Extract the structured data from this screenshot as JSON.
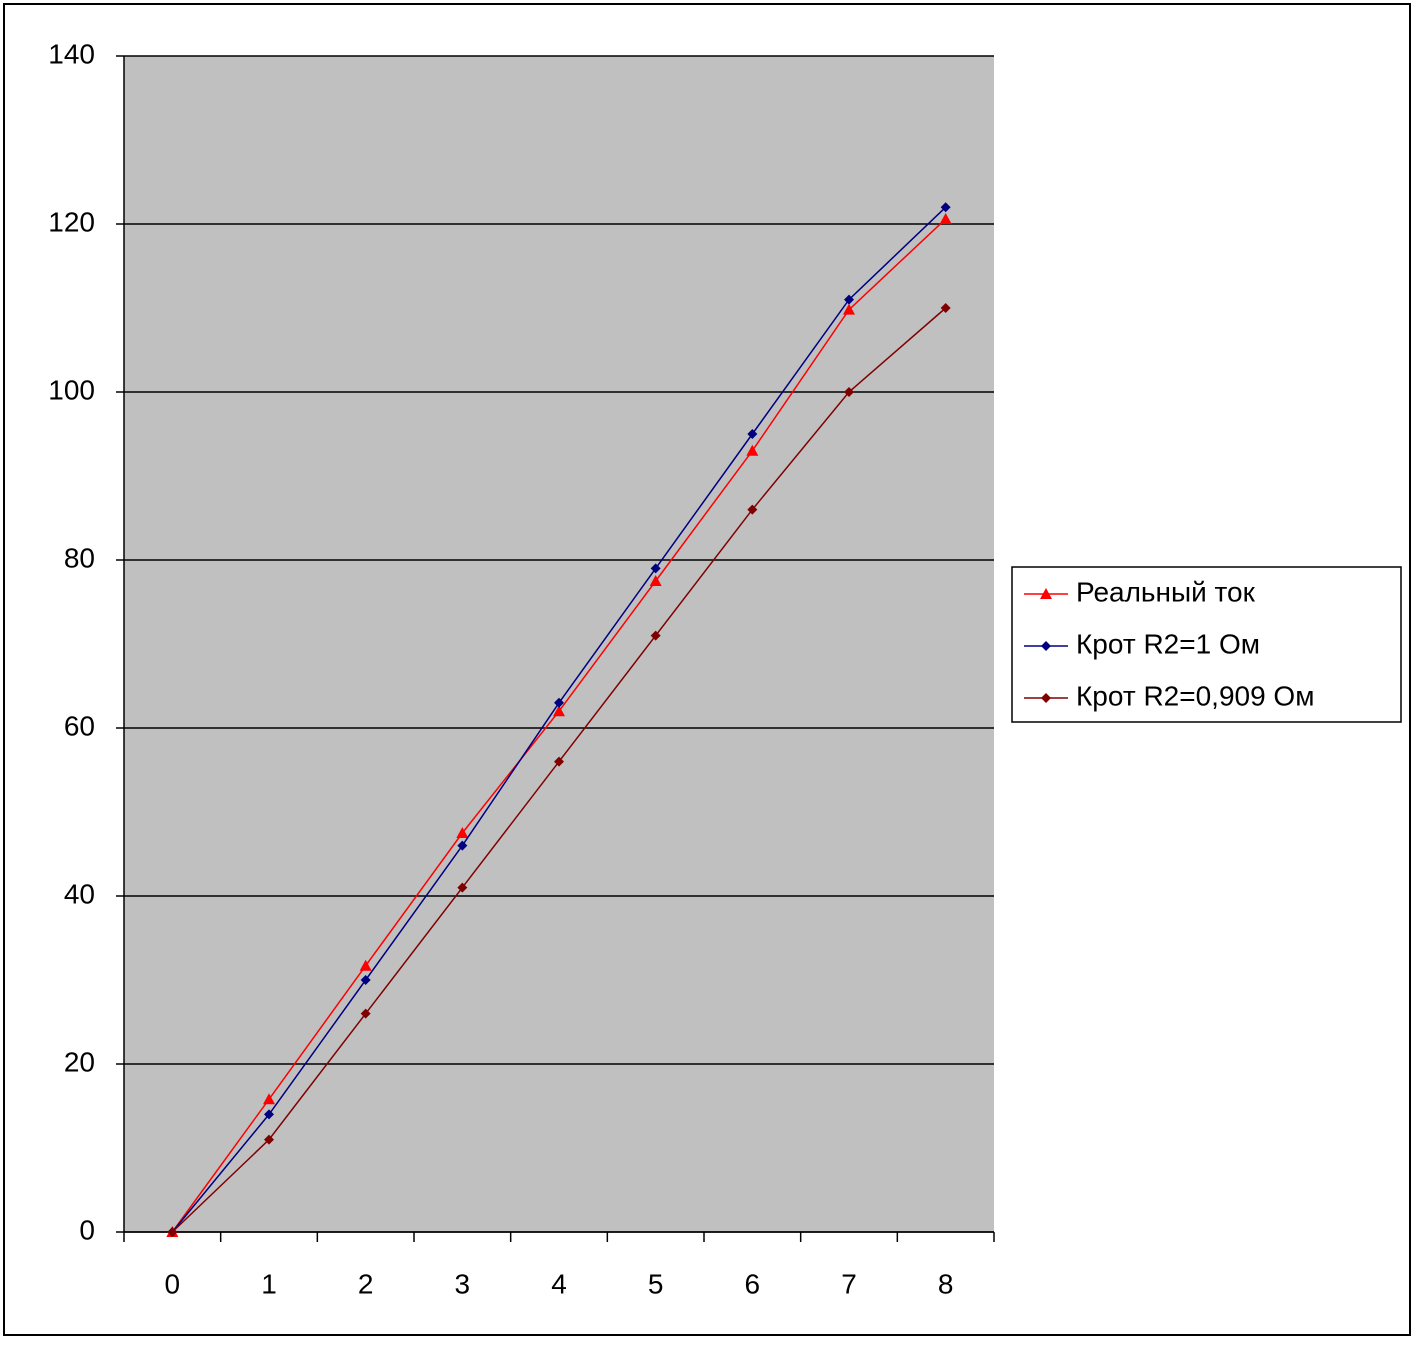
{
  "chart_data": {
    "type": "line",
    "categories": [
      0,
      1,
      2,
      3,
      4,
      5,
      6,
      7,
      8
    ],
    "series": [
      {
        "name": "Реальный ток",
        "color": "#ff0000",
        "marker": "triangle",
        "values": [
          0,
          15.8,
          31.7,
          47.5,
          62,
          77.5,
          93,
          109.8,
          120.6
        ]
      },
      {
        "name": "Крот R2=1 Ом",
        "color": "#000080",
        "marker": "diamond",
        "values": [
          0,
          14,
          30,
          46,
          63,
          79,
          95,
          111,
          122
        ]
      },
      {
        "name": "Крот R2=0,909 Ом",
        "color": "#800000",
        "marker": "diamond",
        "values": [
          0,
          11,
          26,
          41,
          56,
          71,
          86,
          100,
          110
        ]
      }
    ],
    "ylim": [
      0,
      140
    ],
    "yticks": [
      0,
      20,
      40,
      60,
      80,
      100,
      120,
      140
    ],
    "grid": true,
    "plot_background": "#c0c0c0",
    "legend": "right"
  }
}
